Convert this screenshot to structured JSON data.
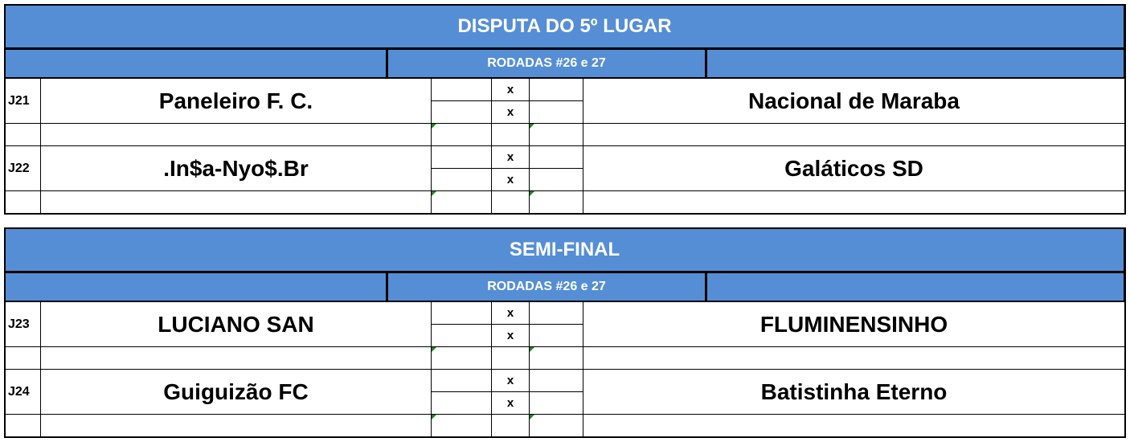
{
  "accent_color": "#558ED5",
  "sections": [
    {
      "title": "DISPUTA DO 5º LUGAR",
      "subtitle": "RODADAS #26 e 27",
      "matches": [
        {
          "id": "J21",
          "home": "Paneleiro F. C.",
          "away": "Nacional de Maraba",
          "sep1": "x",
          "sep2": "x"
        },
        {
          "id": "J22",
          "home": ".In$a-Nyo$.Br",
          "away": "Galáticos SD",
          "sep1": "x",
          "sep2": "x"
        }
      ]
    },
    {
      "title": "SEMI-FINAL",
      "subtitle": "RODADAS #26 e 27",
      "matches": [
        {
          "id": "J23",
          "home": "LUCIANO SAN",
          "away": "FLUMINENSINHO",
          "sep1": "x",
          "sep2": "x"
        },
        {
          "id": "J24",
          "home": "Guiguizão FC",
          "away": "Batistinha Eterno",
          "sep1": "x",
          "sep2": "x"
        }
      ]
    }
  ]
}
